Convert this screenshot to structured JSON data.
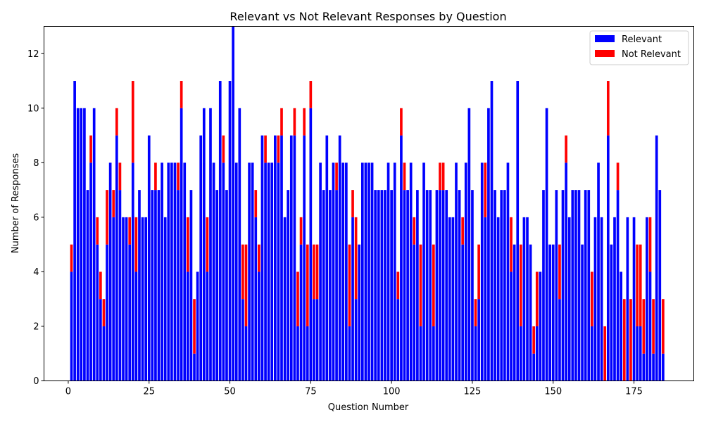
{
  "chart_data": {
    "type": "bar",
    "stacked": true,
    "title": "Relevant vs Not Relevant Responses by Question",
    "xlabel": "Question Number",
    "ylabel": "Number of Responses",
    "xlim": [
      -7.5,
      193.5
    ],
    "ylim": [
      0,
      13
    ],
    "xticks": [
      0,
      25,
      50,
      75,
      100,
      125,
      150,
      175
    ],
    "yticks": [
      0,
      2,
      4,
      6,
      8,
      10,
      12
    ],
    "grid": false,
    "legend": "top-right",
    "x_start": 1,
    "series": [
      {
        "name": "Relevant",
        "color": "#0000ff",
        "values": [
          4,
          11,
          10,
          10,
          10,
          7,
          8,
          10,
          5,
          3,
          2,
          5,
          8,
          6,
          9,
          7,
          6,
          6,
          5,
          8,
          4,
          7,
          6,
          6,
          9,
          7,
          7,
          7,
          8,
          6,
          8,
          8,
          8,
          7,
          10,
          8,
          4,
          7,
          1,
          4,
          9,
          10,
          4,
          10,
          8,
          7,
          11,
          8,
          7,
          11,
          13,
          8,
          10,
          3,
          2,
          8,
          8,
          6,
          4,
          9,
          8,
          8,
          8,
          9,
          8,
          9,
          6,
          7,
          9,
          9,
          2,
          5,
          9,
          2,
          10,
          3,
          3,
          8,
          7,
          9,
          7,
          8,
          7,
          9,
          8,
          8,
          2,
          6,
          3,
          5,
          8,
          8,
          8,
          8,
          7,
          7,
          7,
          7,
          8,
          7,
          8,
          3,
          9,
          7,
          7,
          8,
          5,
          7,
          2,
          8,
          7,
          7,
          2,
          7,
          7,
          7,
          7,
          6,
          6,
          8,
          7,
          5,
          8,
          10,
          7,
          2,
          3,
          8,
          6,
          10,
          11,
          7,
          6,
          7,
          7,
          8,
          4,
          5,
          11,
          2,
          6,
          6,
          5,
          1,
          2,
          4,
          7,
          10,
          5,
          5,
          7,
          3,
          7,
          8,
          6,
          7,
          7,
          7,
          5,
          7,
          7,
          2,
          6,
          8,
          6,
          0,
          9,
          5,
          6,
          7,
          4,
          0,
          6,
          0,
          6,
          2,
          2,
          1,
          6,
          4,
          1,
          9,
          7,
          1
        ],
        "data_labels": []
      },
      {
        "name": "Not Relevant",
        "color": "#ff0000",
        "values": [
          1,
          0,
          0,
          0,
          0,
          0,
          1,
          0,
          1,
          1,
          1,
          2,
          0,
          1,
          1,
          1,
          0,
          0,
          1,
          3,
          2,
          0,
          0,
          0,
          0,
          0,
          1,
          0,
          0,
          0,
          0,
          0,
          0,
          1,
          1,
          0,
          2,
          0,
          2,
          0,
          0,
          0,
          2,
          0,
          0,
          0,
          0,
          1,
          0,
          0,
          0,
          0,
          0,
          2,
          3,
          0,
          0,
          1,
          1,
          0,
          1,
          0,
          0,
          0,
          1,
          1,
          0,
          0,
          0,
          1,
          2,
          1,
          1,
          3,
          1,
          2,
          2,
          0,
          0,
          0,
          0,
          0,
          1,
          0,
          0,
          0,
          3,
          1,
          3,
          0,
          0,
          0,
          0,
          0,
          0,
          0,
          0,
          0,
          0,
          0,
          0,
          1,
          1,
          1,
          0,
          0,
          1,
          0,
          3,
          0,
          0,
          0,
          3,
          0,
          1,
          1,
          0,
          0,
          0,
          0,
          0,
          1,
          0,
          0,
          0,
          1,
          2,
          0,
          2,
          0,
          0,
          0,
          0,
          0,
          0,
          0,
          2,
          0,
          0,
          3,
          0,
          0,
          0,
          1,
          2,
          0,
          0,
          0,
          0,
          0,
          0,
          2,
          0,
          1,
          0,
          0,
          0,
          0,
          0,
          0,
          0,
          2,
          0,
          0,
          0,
          2,
          2,
          0,
          0,
          1,
          0,
          3,
          0,
          3,
          0,
          3,
          3,
          2,
          0,
          2,
          2,
          0,
          0,
          2
        ],
        "data_labels": []
      }
    ]
  }
}
